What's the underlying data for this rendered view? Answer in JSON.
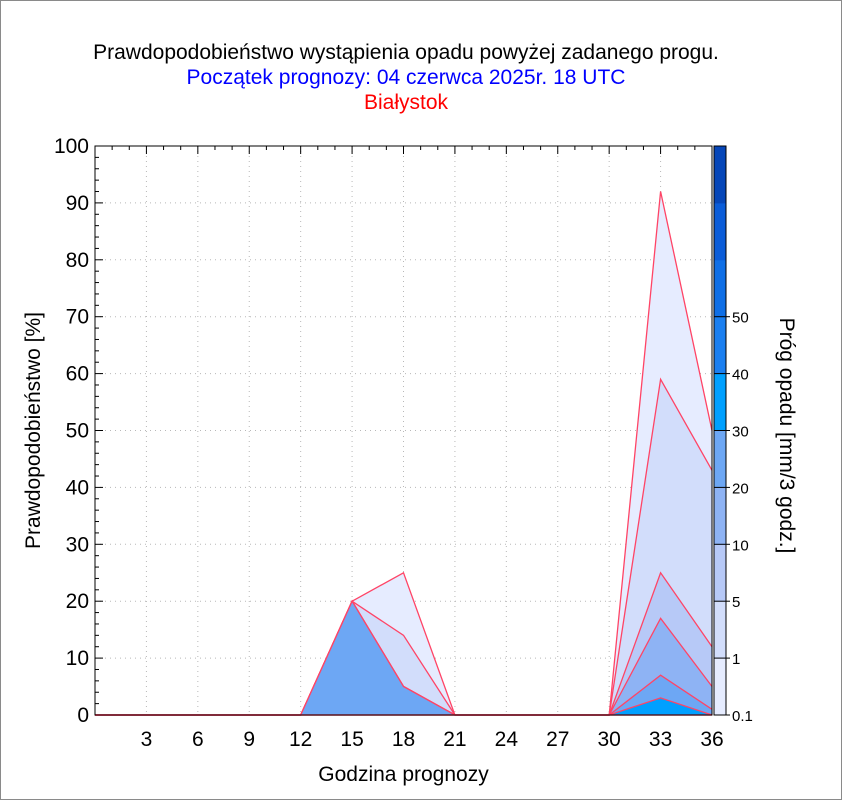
{
  "title": {
    "line1": "Prawdopodobieństwo wystąpienia opadu powyżej zadanego progu.",
    "line2": "Początek prognozy: 04 czerwca 2025r. 18 UTC",
    "line3": "Białystok",
    "colors": {
      "line1": "#000000",
      "line2": "#0000ff",
      "line3": "#ff0000"
    }
  },
  "chart_data": {
    "type": "area",
    "title": "Prawdopodobieństwo wystąpienia opadu powyżej zadanego progu.",
    "xlabel": "Godzina prognozy",
    "ylabel": "Prawdopodobieństwo [%]",
    "xlim": [
      0,
      36
    ],
    "ylim": [
      0,
      100
    ],
    "x_ticks": [
      3,
      6,
      9,
      12,
      15,
      18,
      21,
      24,
      27,
      30,
      33,
      36
    ],
    "y_ticks": [
      0,
      10,
      20,
      30,
      40,
      50,
      60,
      70,
      80,
      90,
      100
    ],
    "grid": true,
    "x": [
      0,
      3,
      6,
      9,
      12,
      15,
      18,
      21,
      24,
      27,
      30,
      33,
      36
    ],
    "series": [
      {
        "name": "0.1",
        "color": "#e6ecff",
        "values": [
          0,
          0,
          0,
          0,
          0,
          20,
          25,
          0,
          0,
          0,
          0,
          92,
          50
        ]
      },
      {
        "name": "1",
        "color": "#d2ddfb",
        "values": [
          0,
          0,
          0,
          0,
          0,
          20,
          14,
          0,
          0,
          0,
          0,
          59,
          43
        ]
      },
      {
        "name": "5",
        "color": "#b7c9f7",
        "values": [
          0,
          0,
          0,
          0,
          0,
          20,
          5,
          0,
          0,
          0,
          0,
          25,
          12
        ]
      },
      {
        "name": "10",
        "color": "#8eb3f4",
        "values": [
          0,
          0,
          0,
          0,
          0,
          20,
          5,
          0,
          0,
          0,
          0,
          17,
          5
        ]
      },
      {
        "name": "20",
        "color": "#6da7f4",
        "values": [
          0,
          0,
          0,
          0,
          0,
          20,
          5,
          0,
          0,
          0,
          0,
          7,
          1
        ]
      },
      {
        "name": "30",
        "color": "#00a0ff",
        "values": [
          0,
          0,
          0,
          0,
          0,
          0,
          0,
          0,
          0,
          0,
          0,
          3,
          0
        ]
      },
      {
        "name": "40",
        "color": "#0064e6",
        "values": [
          0,
          0,
          0,
          0,
          0,
          0,
          0,
          0,
          0,
          0,
          0,
          0,
          0
        ]
      },
      {
        "name": "50",
        "color": "#003fb4",
        "values": [
          0,
          0,
          0,
          0,
          0,
          0,
          0,
          0,
          0,
          0,
          0,
          0,
          0
        ]
      }
    ],
    "line_color": "#ff4466",
    "colorbar": {
      "label": "Próg opadu [mm/3 godz.]",
      "tick_labels": [
        "0.1",
        "1",
        "5",
        "10",
        "20",
        "30",
        "40",
        "50"
      ],
      "colors": [
        "#e6ecff",
        "#d2ddfb",
        "#b7c9f7",
        "#8eb3f4",
        "#6da7f4",
        "#00a0ff",
        "#1a7ff0",
        "#0f6fe6",
        "#0a5cd8",
        "#0646b8"
      ]
    }
  }
}
